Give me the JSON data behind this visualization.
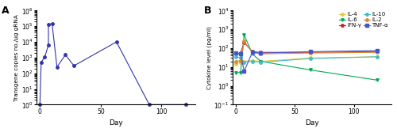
{
  "panel_A": {
    "days": [
      0,
      1,
      4,
      7,
      7,
      10,
      14,
      21,
      28,
      63,
      90,
      120
    ],
    "values": [
      1,
      500,
      1100,
      6500,
      130000.0,
      150000.0,
      250,
      1500,
      300,
      10000.0,
      1,
      1
    ],
    "color": "#3333aa",
    "marker": "o",
    "markersize": 2.5,
    "linewidth": 0.8,
    "ylabel": "Transgene copies no./μg gRNA",
    "xlabel": "Day",
    "ylim_log": [
      1.0,
      1000000.0
    ],
    "xlim": [
      -3,
      128
    ],
    "yticks": [
      1.0,
      10.0,
      100.0,
      1000.0,
      10000.0,
      100000.0,
      1000000.0
    ],
    "xticks": [
      0,
      50,
      100
    ],
    "label": "A"
  },
  "panel_B": {
    "series_order": [
      "IL-4",
      "IL-6",
      "IFN-γ",
      "IL-10",
      "IL-2",
      "TNF-α"
    ],
    "series": {
      "IL-4": {
        "days": [
          0,
          4,
          7,
          14,
          21,
          63,
          120
        ],
        "values": [
          15,
          18,
          20,
          22,
          20,
          30,
          35
        ],
        "color": "#e8c840",
        "marker": "o",
        "markersize": 2.5,
        "linestyle": "-"
      },
      "IL-6": {
        "days": [
          0,
          4,
          7,
          14,
          21,
          63,
          120
        ],
        "values": [
          5,
          5,
          500,
          50,
          20,
          7,
          2
        ],
        "color": "#00aa55",
        "marker": "v",
        "markersize": 2.5,
        "linestyle": "-"
      },
      "IFN-γ": {
        "days": [
          0,
          4,
          7,
          14,
          21,
          63,
          120
        ],
        "values": [
          50,
          55,
          200,
          65,
          60,
          60,
          65
        ],
        "color": "#cc2222",
        "marker": "o",
        "markersize": 2.5,
        "linestyle": "-"
      },
      "IL-10": {
        "days": [
          0,
          4,
          7,
          14,
          21,
          63,
          120
        ],
        "values": [
          35,
          30,
          18,
          20,
          18,
          28,
          35
        ],
        "color": "#44bbcc",
        "marker": "o",
        "markersize": 2.5,
        "linestyle": "-"
      },
      "IL-2": {
        "days": [
          0,
          4,
          7,
          14,
          21,
          63,
          120
        ],
        "values": [
          20,
          22,
          230,
          60,
          50,
          55,
          60
        ],
        "color": "#dd8833",
        "marker": "o",
        "markersize": 2.5,
        "linestyle": "-"
      },
      "TNF-α": {
        "days": [
          0,
          4,
          7,
          14,
          21,
          63,
          120
        ],
        "values": [
          55,
          50,
          6,
          60,
          55,
          65,
          75
        ],
        "color": "#4455cc",
        "marker": "s",
        "markersize": 2.5,
        "linestyle": "-"
      }
    },
    "ylabel": "Cytokine level (pg/ml)",
    "xlabel": "Day",
    "ylim_log": [
      0.1,
      10000.0
    ],
    "xlim": [
      -3,
      132
    ],
    "xticks": [
      0,
      50,
      100
    ],
    "yticks": [
      0.1,
      1,
      10,
      100,
      1000,
      10000
    ],
    "label": "B",
    "legend": {
      "col1": [
        "IL-4",
        "IFN-γ",
        "IL-2"
      ],
      "col2": [
        "IL-6",
        "IL-10",
        "TNF-α"
      ]
    }
  }
}
